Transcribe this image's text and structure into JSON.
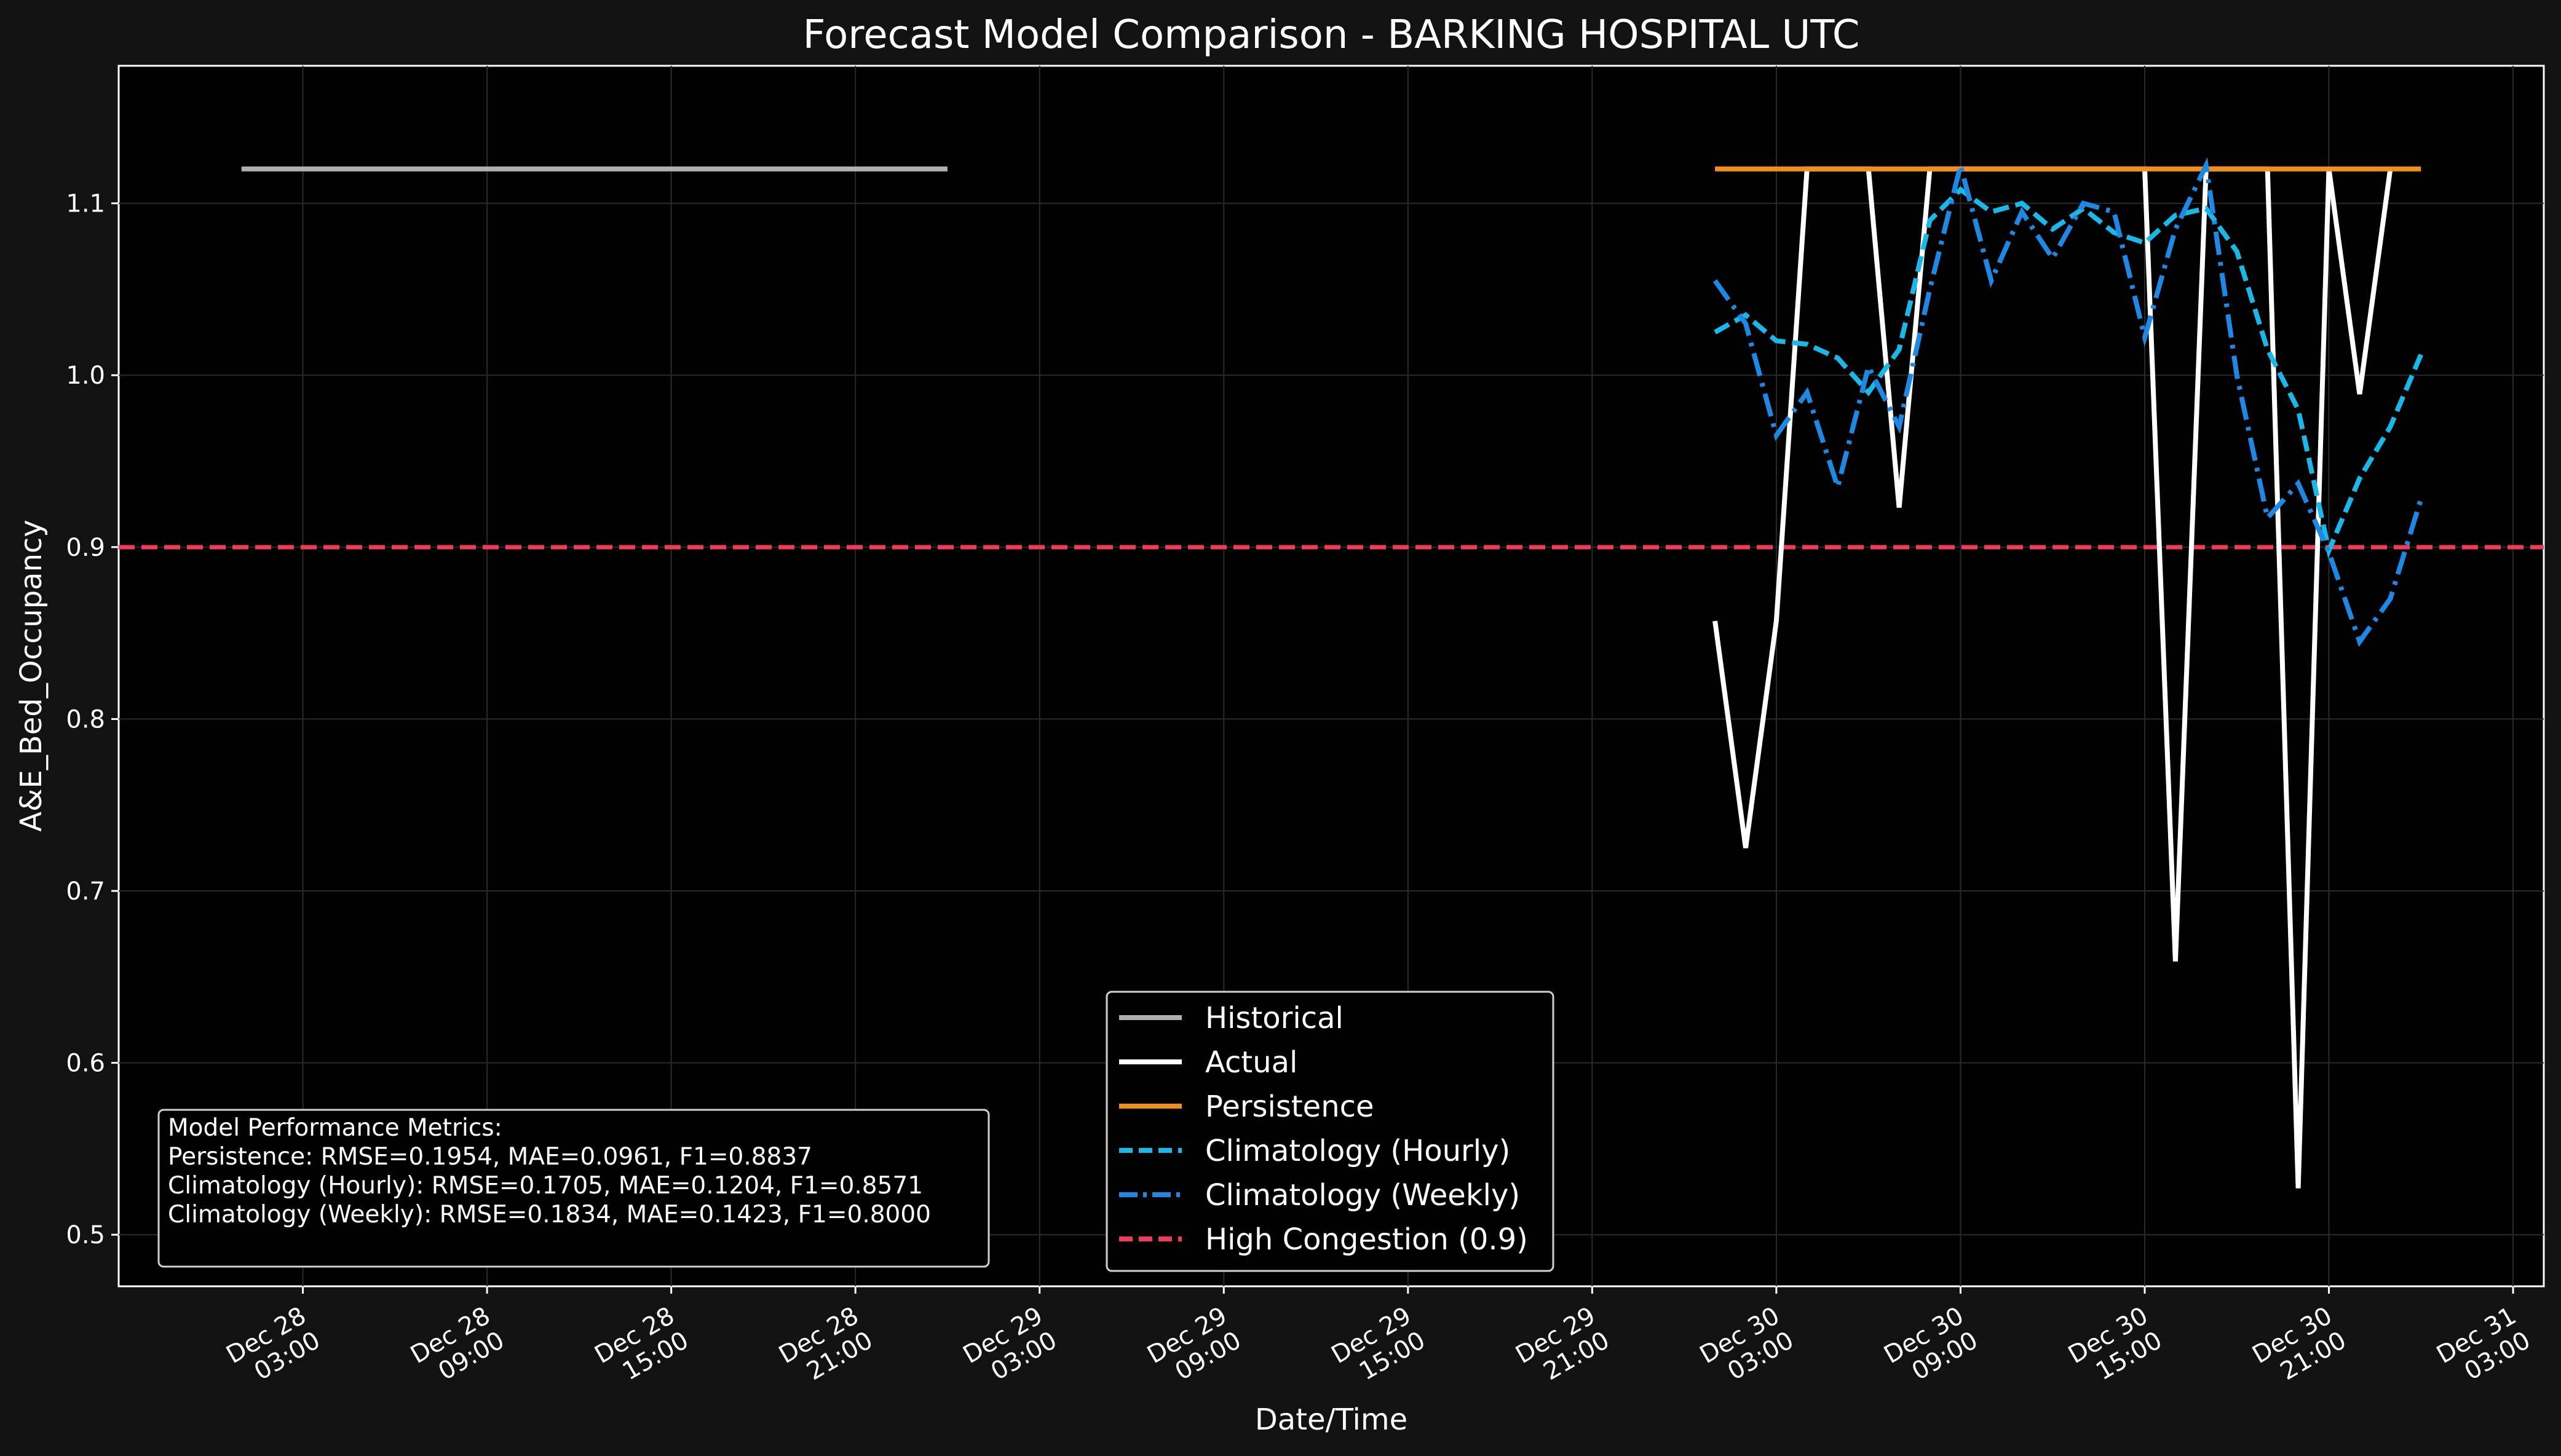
{
  "chart_data": {
    "type": "line",
    "title": "Forecast Model Comparison - BARKING HOSPITAL UTC",
    "xlabel": "Date/Time",
    "ylabel": "A&E_Bed_Occupancy",
    "xlim": [
      "2023-12-27T21:00",
      "2023-12-31T04:00"
    ],
    "ylim": [
      0.47,
      1.18
    ],
    "grid": true,
    "yticks": [
      {
        "value": 0.5,
        "label": "0.5"
      },
      {
        "value": 0.6,
        "label": "0.6"
      },
      {
        "value": 0.7,
        "label": "0.7"
      },
      {
        "value": 0.8,
        "label": "0.8"
      },
      {
        "value": 0.9,
        "label": "0.9"
      },
      {
        "value": 1.0,
        "label": "1.0"
      },
      {
        "value": 1.1,
        "label": "1.1"
      }
    ],
    "xticks": [
      {
        "value": "2023-12-28T03:00",
        "line1": "Dec 28",
        "line2": "03:00"
      },
      {
        "value": "2023-12-28T09:00",
        "line1": "Dec 28",
        "line2": "09:00"
      },
      {
        "value": "2023-12-28T15:00",
        "line1": "Dec 28",
        "line2": "15:00"
      },
      {
        "value": "2023-12-28T21:00",
        "line1": "Dec 28",
        "line2": "21:00"
      },
      {
        "value": "2023-12-29T03:00",
        "line1": "Dec 29",
        "line2": "03:00"
      },
      {
        "value": "2023-12-29T09:00",
        "line1": "Dec 29",
        "line2": "09:00"
      },
      {
        "value": "2023-12-29T15:00",
        "line1": "Dec 29",
        "line2": "15:00"
      },
      {
        "value": "2023-12-29T21:00",
        "line1": "Dec 29",
        "line2": "21:00"
      },
      {
        "value": "2023-12-30T03:00",
        "line1": "Dec 30",
        "line2": "03:00"
      },
      {
        "value": "2023-12-30T09:00",
        "line1": "Dec 30",
        "line2": "09:00"
      },
      {
        "value": "2023-12-30T15:00",
        "line1": "Dec 30",
        "line2": "15:00"
      },
      {
        "value": "2023-12-30T21:00",
        "line1": "Dec 30",
        "line2": "21:00"
      },
      {
        "value": "2023-12-31T03:00",
        "line1": "Dec 31",
        "line2": "03:00"
      }
    ],
    "series": [
      {
        "name": "Historical",
        "color": "#b0b0b0",
        "style": "solid",
        "points": [
          [
            "2023-12-28T01:00",
            1.12
          ],
          [
            "2023-12-29T00:00",
            1.12
          ]
        ]
      },
      {
        "name": "Actual",
        "color": "#ffffff",
        "style": "solid",
        "points": [
          [
            "2023-12-30T01:00",
            0.857
          ],
          [
            "2023-12-30T02:00",
            0.725
          ],
          [
            "2023-12-30T03:00",
            0.857
          ],
          [
            "2023-12-30T04:00",
            1.12
          ],
          [
            "2023-12-30T05:00",
            1.12
          ],
          [
            "2023-12-30T06:00",
            1.12
          ],
          [
            "2023-12-30T07:00",
            0.923
          ],
          [
            "2023-12-30T08:00",
            1.12
          ],
          [
            "2023-12-30T09:00",
            1.12
          ],
          [
            "2023-12-30T10:00",
            1.12
          ],
          [
            "2023-12-30T11:00",
            1.12
          ],
          [
            "2023-12-30T12:00",
            1.12
          ],
          [
            "2023-12-30T13:00",
            1.12
          ],
          [
            "2023-12-30T14:00",
            1.12
          ],
          [
            "2023-12-30T15:00",
            1.12
          ],
          [
            "2023-12-30T16:00",
            0.659
          ],
          [
            "2023-12-30T17:00",
            1.12
          ],
          [
            "2023-12-30T18:00",
            1.12
          ],
          [
            "2023-12-30T19:00",
            1.12
          ],
          [
            "2023-12-30T20:00",
            0.527
          ],
          [
            "2023-12-30T21:00",
            1.12
          ],
          [
            "2023-12-30T22:00",
            0.989
          ],
          [
            "2023-12-30T23:00",
            1.12
          ]
        ]
      },
      {
        "name": "Persistence",
        "color": "#f28e1c",
        "style": "solid",
        "points": [
          [
            "2023-12-30T01:00",
            1.12
          ],
          [
            "2023-12-31T00:00",
            1.12
          ]
        ]
      },
      {
        "name": "Climatology (Hourly)",
        "color": "#1ab8e8",
        "style": "dashed",
        "points": [
          [
            "2023-12-30T01:00",
            1.025
          ],
          [
            "2023-12-30T02:00",
            1.035
          ],
          [
            "2023-12-30T03:00",
            1.02
          ],
          [
            "2023-12-30T04:00",
            1.018
          ],
          [
            "2023-12-30T05:00",
            1.01
          ],
          [
            "2023-12-30T06:00",
            0.99
          ],
          [
            "2023-12-30T07:00",
            1.015
          ],
          [
            "2023-12-30T08:00",
            1.09
          ],
          [
            "2023-12-30T09:00",
            1.108
          ],
          [
            "2023-12-30T10:00",
            1.095
          ],
          [
            "2023-12-30T11:00",
            1.1
          ],
          [
            "2023-12-30T12:00",
            1.085
          ],
          [
            "2023-12-30T13:00",
            1.097
          ],
          [
            "2023-12-30T14:00",
            1.083
          ],
          [
            "2023-12-30T15:00",
            1.077
          ],
          [
            "2023-12-30T16:00",
            1.093
          ],
          [
            "2023-12-30T17:00",
            1.097
          ],
          [
            "2023-12-30T18:00",
            1.072
          ],
          [
            "2023-12-30T19:00",
            1.015
          ],
          [
            "2023-12-30T20:00",
            0.98
          ],
          [
            "2023-12-30T21:00",
            0.898
          ],
          [
            "2023-12-30T22:00",
            0.94
          ],
          [
            "2023-12-30T23:00",
            0.97
          ],
          [
            "2023-12-31T00:00",
            1.012
          ]
        ]
      },
      {
        "name": "Climatology (Weekly)",
        "color": "#1e88e5",
        "style": "dashdot",
        "points": [
          [
            "2023-12-30T01:00",
            1.055
          ],
          [
            "2023-12-30T02:00",
            1.03
          ],
          [
            "2023-12-30T03:00",
            0.965
          ],
          [
            "2023-12-30T04:00",
            0.99
          ],
          [
            "2023-12-30T05:00",
            0.935
          ],
          [
            "2023-12-30T06:00",
            1.005
          ],
          [
            "2023-12-30T07:00",
            0.97
          ],
          [
            "2023-12-30T08:00",
            1.05
          ],
          [
            "2023-12-30T09:00",
            1.122
          ],
          [
            "2023-12-30T10:00",
            1.055
          ],
          [
            "2023-12-30T11:00",
            1.095
          ],
          [
            "2023-12-30T12:00",
            1.068
          ],
          [
            "2023-12-30T13:00",
            1.1
          ],
          [
            "2023-12-30T14:00",
            1.095
          ],
          [
            "2023-12-30T15:00",
            1.022
          ],
          [
            "2023-12-30T16:00",
            1.085
          ],
          [
            "2023-12-30T17:00",
            1.122
          ],
          [
            "2023-12-30T18:00",
            1.0
          ],
          [
            "2023-12-30T19:00",
            0.917
          ],
          [
            "2023-12-30T20:00",
            0.937
          ],
          [
            "2023-12-30T21:00",
            0.897
          ],
          [
            "2023-12-30T22:00",
            0.845
          ],
          [
            "2023-12-30T23:00",
            0.87
          ],
          [
            "2023-12-31T00:00",
            0.928
          ]
        ]
      }
    ],
    "threshold": {
      "name": "High Congestion (0.9)",
      "value": 0.9,
      "color": "#ef3b5a",
      "style": "dashed"
    },
    "legend": {
      "placement": "lower-center",
      "entries": [
        {
          "label": "Historical",
          "color": "#b0b0b0",
          "style": "solid"
        },
        {
          "label": "Actual",
          "color": "#ffffff",
          "style": "solid"
        },
        {
          "label": "Persistence",
          "color": "#f28e1c",
          "style": "solid"
        },
        {
          "label": "Climatology (Hourly)",
          "color": "#1ab8e8",
          "style": "dashed"
        },
        {
          "label": "Climatology (Weekly)",
          "color": "#1e88e5",
          "style": "dashdot"
        },
        {
          "label": "High Congestion (0.9)",
          "color": "#ef3b5a",
          "style": "dashed"
        }
      ]
    },
    "metrics_box": {
      "placement": "lower-left",
      "lines": [
        "Model Performance Metrics:",
        "Persistence: RMSE=0.1954, MAE=0.0961, F1=0.8837",
        "Climatology (Hourly): RMSE=0.1705, MAE=0.1204, F1=0.8571",
        "Climatology (Weekly): RMSE=0.1834, MAE=0.1423, F1=0.8000"
      ]
    }
  }
}
